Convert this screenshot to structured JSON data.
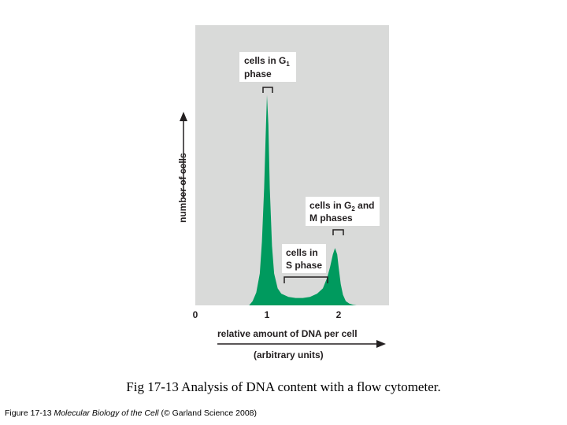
{
  "colors": {
    "panel": "#d9dad9",
    "peak": "#009a5e",
    "text": "#231f20"
  },
  "chart_data": {
    "type": "area",
    "xlabel": "relative amount of DNA per cell",
    "xlabel_units": "(arbitrary units)",
    "ylabel": "number of cells",
    "x_ticks": [
      "0",
      "1",
      "2"
    ],
    "xlim": [
      0,
      2.6
    ],
    "ylim": [
      0,
      1.0
    ],
    "grid": false,
    "x": [
      0.75,
      0.8,
      0.85,
      0.9,
      0.93,
      0.96,
      0.98,
      1.0,
      1.02,
      1.04,
      1.07,
      1.1,
      1.15,
      1.2,
      1.3,
      1.4,
      1.5,
      1.6,
      1.7,
      1.78,
      1.84,
      1.88,
      1.92,
      1.95,
      1.98,
      2.0,
      2.03,
      2.06,
      2.1,
      2.15,
      2.2,
      2.25
    ],
    "y": [
      0.0,
      0.02,
      0.06,
      0.15,
      0.3,
      0.55,
      0.78,
      0.99,
      0.85,
      0.55,
      0.28,
      0.15,
      0.08,
      0.055,
      0.04,
      0.035,
      0.035,
      0.04,
      0.055,
      0.08,
      0.13,
      0.18,
      0.24,
      0.27,
      0.24,
      0.18,
      0.1,
      0.05,
      0.02,
      0.008,
      0.003,
      0.0
    ],
    "annotations": [
      {
        "id": "g1",
        "line1": "cells in G",
        "sub1": "1",
        "line2": "phase"
      },
      {
        "id": "g2",
        "line1": "cells in G",
        "sub1": "2",
        "line1b": " and",
        "line2": "M phases"
      },
      {
        "id": "s",
        "line1": "cells in",
        "line2": "S phase"
      }
    ]
  },
  "caption": "Fig 17-13 Analysis of DNA  content with a flow cytometer.",
  "credit": {
    "prefix": "Figure 17-13  ",
    "book": "Molecular Biology of the Cell",
    "suffix": " (© Garland Science 2008)"
  }
}
